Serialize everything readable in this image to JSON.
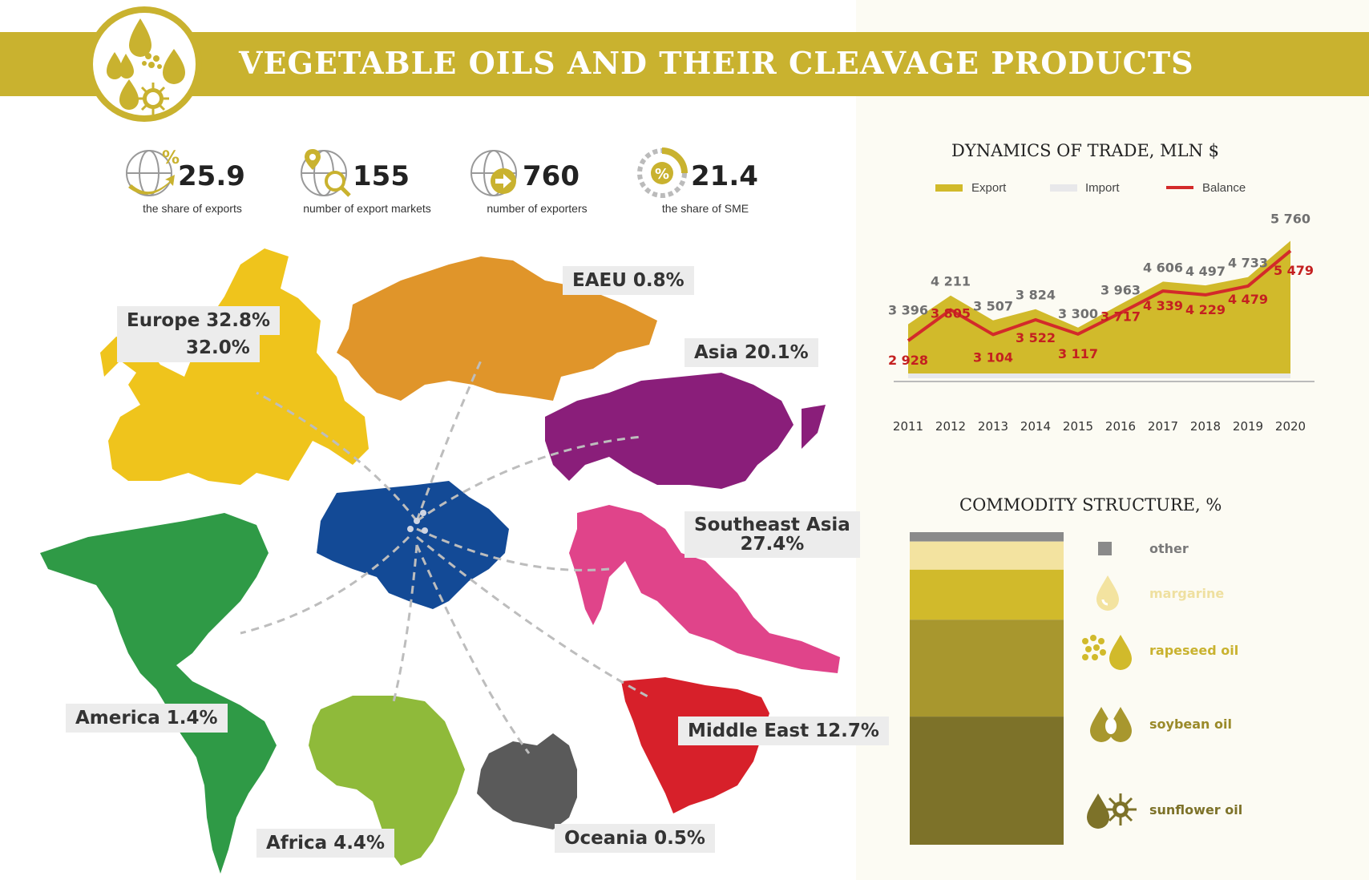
{
  "header": {
    "title": "VEGETABLE OILS AND THEIR CLEAVAGE PRODUCTS"
  },
  "stats": [
    {
      "value": "25.9",
      "label": "the share of exports",
      "icon": "globe-percent-icon"
    },
    {
      "value": "155",
      "label": "number of export markets",
      "icon": "globe-search-icon"
    },
    {
      "value": "760",
      "label": "number of exporters",
      "icon": "globe-arrow-icon"
    },
    {
      "value": "21.4",
      "label": "the share of SME",
      "icon": "gauge-percent-icon"
    }
  ],
  "regions": {
    "europe": "Europe 32.8%",
    "eu": "32.0%",
    "eaeu": "EAEU 0.8%",
    "asia": "Asia 20.1%",
    "southeast_asia_1": "Southeast Asia",
    "southeast_asia_2": "27.4%",
    "america": "America 1.4%",
    "africa": "Africa 4.4%",
    "middle_east": "Middle East 12.7%",
    "oceania": "Oceania 0.5%"
  },
  "colors": {
    "europe": "#efc41c",
    "eaeu": "#e0952a",
    "asia": "#8a1e7a",
    "southeast_asia": "#e0448a",
    "middle_east": "#d7202a",
    "oceania": "#5a5a5a",
    "africa": "#8fba3a",
    "america": "#2f9a46",
    "ukraine": "#134a96",
    "export": "#d1ba2b",
    "import": "#e8e8ea",
    "balance": "#d32a2a"
  },
  "trade_chart": {
    "title": "DYNAMICS OF TRADE, MLN $",
    "legend": {
      "export": "Export",
      "import": "Import",
      "balance": "Balance"
    }
  },
  "commodity_chart": {
    "title": "COMMODITY STRUCTURE, %",
    "labels": {
      "other": "other",
      "margarine": "margarine",
      "rapeseed": "rapeseed oil",
      "soybean": "soybean oil",
      "sunflower": "sunflower oil"
    }
  },
  "chart_data": [
    {
      "type": "area",
      "title": "DYNAMICS OF TRADE, MLN $",
      "categories": [
        "2011",
        "2012",
        "2013",
        "2014",
        "2015",
        "2016",
        "2017",
        "2018",
        "2019",
        "2020"
      ],
      "series": [
        {
          "name": "Export",
          "values": [
            3396,
            4211,
            3507,
            3824,
            3300,
            3963,
            4606,
            4497,
            4733,
            5760
          ]
        },
        {
          "name": "Balance",
          "values": [
            2928,
            3805,
            3104,
            3522,
            3117,
            3717,
            4339,
            4229,
            4479,
            5479
          ]
        }
      ],
      "export_labels": [
        "3 396",
        "4 211",
        "3 507",
        "3 824",
        "3 300",
        "3 963",
        "4 606",
        "4 497",
        "4 733",
        "5 760"
      ],
      "balance_labels": [
        "2 928",
        "3 805",
        "3 104",
        "3 522",
        "3 117",
        "3 717",
        "4 339",
        "4 229",
        "4 479",
        "5 479"
      ],
      "ylim": [
        0,
        6000
      ],
      "legend_position": "top"
    },
    {
      "type": "bar",
      "title": "COMMODITY STRUCTURE, %",
      "stacked": true,
      "categories": [
        "other",
        "margarine",
        "rapeseed oil",
        "soybean oil",
        "sunflower oil"
      ],
      "values": [
        3,
        9,
        16,
        31,
        41
      ],
      "colors": [
        "#8a8a8a",
        "#f3e3a0",
        "#d1ba2b",
        "#a8972e",
        "#7d7229"
      ],
      "legend_position": "right"
    }
  ]
}
